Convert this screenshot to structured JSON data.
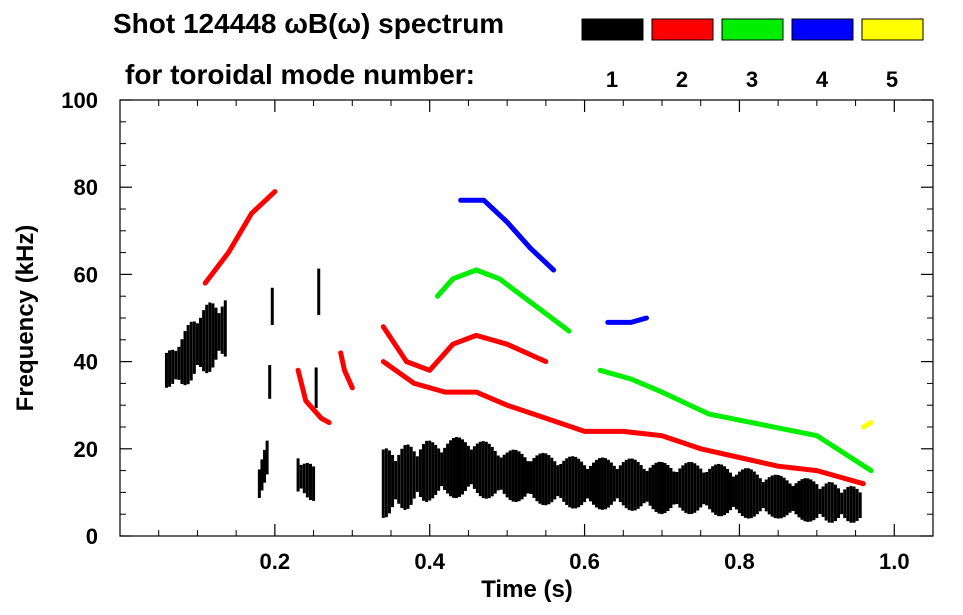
{
  "chart_data": {
    "type": "spectrogram",
    "title_line1": "Shot 124448 ωB(ω) spectrum",
    "title_line2": "for toroidal mode number:",
    "xlabel": "Time (s)",
    "ylabel": "Frequency (kHz)",
    "xlim": [
      0.0,
      1.05
    ],
    "ylim": [
      0,
      100
    ],
    "xticks": [
      0.2,
      0.4,
      0.6,
      0.8,
      1.0
    ],
    "xtick_labels": [
      "0.2",
      "0.4",
      "0.6",
      "0.8",
      "1.0"
    ],
    "yticks": [
      0,
      20,
      40,
      60,
      80,
      100
    ],
    "ytick_labels": [
      "0",
      "20",
      "40",
      "60",
      "80",
      "100"
    ],
    "legend": [
      {
        "label": "1",
        "color": "#000000"
      },
      {
        "label": "2",
        "color": "#ff0000"
      },
      {
        "label": "3",
        "color": "#00ee00"
      },
      {
        "label": "4",
        "color": "#0000ff"
      },
      {
        "label": "5",
        "color": "#ffff00"
      }
    ],
    "series": [
      {
        "name": "n=1 low-frequency band",
        "mode": 1,
        "kind": "band",
        "points": [
          [
            0.34,
            12,
            8
          ],
          [
            0.4,
            15,
            7
          ],
          [
            0.45,
            16,
            7
          ],
          [
            0.5,
            14,
            6
          ],
          [
            0.55,
            13,
            6
          ],
          [
            0.6,
            12,
            6
          ],
          [
            0.65,
            12,
            6
          ],
          [
            0.7,
            11,
            6
          ],
          [
            0.75,
            11,
            6
          ],
          [
            0.8,
            10,
            6
          ],
          [
            0.85,
            9,
            5
          ],
          [
            0.9,
            8,
            5
          ],
          [
            0.96,
            7,
            4
          ]
        ]
      },
      {
        "name": "n=1 early burst",
        "mode": 1,
        "kind": "band",
        "points": [
          [
            0.06,
            38,
            4
          ],
          [
            0.08,
            40,
            6
          ],
          [
            0.1,
            44,
            8
          ],
          [
            0.12,
            46,
            8
          ],
          [
            0.14,
            48,
            7
          ]
        ]
      },
      {
        "name": "n=1 spike 0.19s",
        "mode": 1,
        "kind": "band",
        "points": [
          [
            0.18,
            12,
            4
          ],
          [
            0.19,
            18,
            6
          ],
          [
            0.2,
            70,
            8
          ]
        ]
      },
      {
        "name": "n=1 0.23-0.26s",
        "mode": 1,
        "kind": "band",
        "points": [
          [
            0.23,
            14,
            5
          ],
          [
            0.25,
            12,
            4
          ],
          [
            0.26,
            78,
            6
          ]
        ]
      },
      {
        "name": "n=2 rising chirp",
        "mode": 2,
        "kind": "line",
        "points": [
          [
            0.11,
            58
          ],
          [
            0.14,
            65
          ],
          [
            0.17,
            74
          ],
          [
            0.2,
            79
          ]
        ]
      },
      {
        "name": "n=2 chirp 0.23-0.26s",
        "mode": 2,
        "kind": "line",
        "points": [
          [
            0.23,
            38
          ],
          [
            0.24,
            31
          ],
          [
            0.26,
            27
          ],
          [
            0.27,
            26
          ]
        ]
      },
      {
        "name": "n=2 burst 0.29s",
        "mode": 2,
        "kind": "line",
        "points": [
          [
            0.285,
            42
          ],
          [
            0.29,
            38
          ],
          [
            0.3,
            34
          ]
        ]
      },
      {
        "name": "n=2 upper",
        "mode": 2,
        "kind": "line",
        "points": [
          [
            0.34,
            48
          ],
          [
            0.37,
            40
          ],
          [
            0.4,
            38
          ],
          [
            0.43,
            44
          ],
          [
            0.46,
            46
          ],
          [
            0.5,
            44
          ],
          [
            0.55,
            40
          ]
        ]
      },
      {
        "name": "n=2 lower",
        "mode": 2,
        "kind": "line",
        "points": [
          [
            0.34,
            40
          ],
          [
            0.38,
            35
          ],
          [
            0.42,
            33
          ],
          [
            0.46,
            33
          ],
          [
            0.5,
            30
          ],
          [
            0.55,
            27
          ],
          [
            0.6,
            24
          ],
          [
            0.65,
            24
          ],
          [
            0.7,
            23
          ],
          [
            0.75,
            20
          ],
          [
            0.8,
            18
          ],
          [
            0.85,
            16
          ],
          [
            0.9,
            15
          ],
          [
            0.96,
            12
          ]
        ]
      },
      {
        "name": "n=3 arc",
        "mode": 3,
        "kind": "line",
        "points": [
          [
            0.41,
            55
          ],
          [
            0.43,
            59
          ],
          [
            0.46,
            61
          ],
          [
            0.49,
            59
          ],
          [
            0.52,
            55
          ],
          [
            0.55,
            51
          ],
          [
            0.58,
            47
          ]
        ]
      },
      {
        "name": "n=3 late",
        "mode": 3,
        "kind": "line",
        "points": [
          [
            0.62,
            38
          ],
          [
            0.66,
            36
          ],
          [
            0.7,
            33
          ],
          [
            0.76,
            28
          ],
          [
            0.9,
            23
          ],
          [
            0.97,
            15
          ]
        ]
      },
      {
        "name": "n=4 arc",
        "mode": 4,
        "kind": "line",
        "points": [
          [
            0.44,
            77
          ],
          [
            0.47,
            77
          ],
          [
            0.5,
            72
          ],
          [
            0.53,
            66
          ],
          [
            0.56,
            61
          ]
        ]
      },
      {
        "name": "n=4 0.67s",
        "mode": 4,
        "kind": "line",
        "points": [
          [
            0.63,
            49
          ],
          [
            0.66,
            49
          ],
          [
            0.68,
            50
          ]
        ]
      },
      {
        "name": "n=5 late",
        "mode": 5,
        "kind": "line",
        "points": [
          [
            0.96,
            25
          ],
          [
            0.97,
            26
          ]
        ]
      }
    ]
  }
}
